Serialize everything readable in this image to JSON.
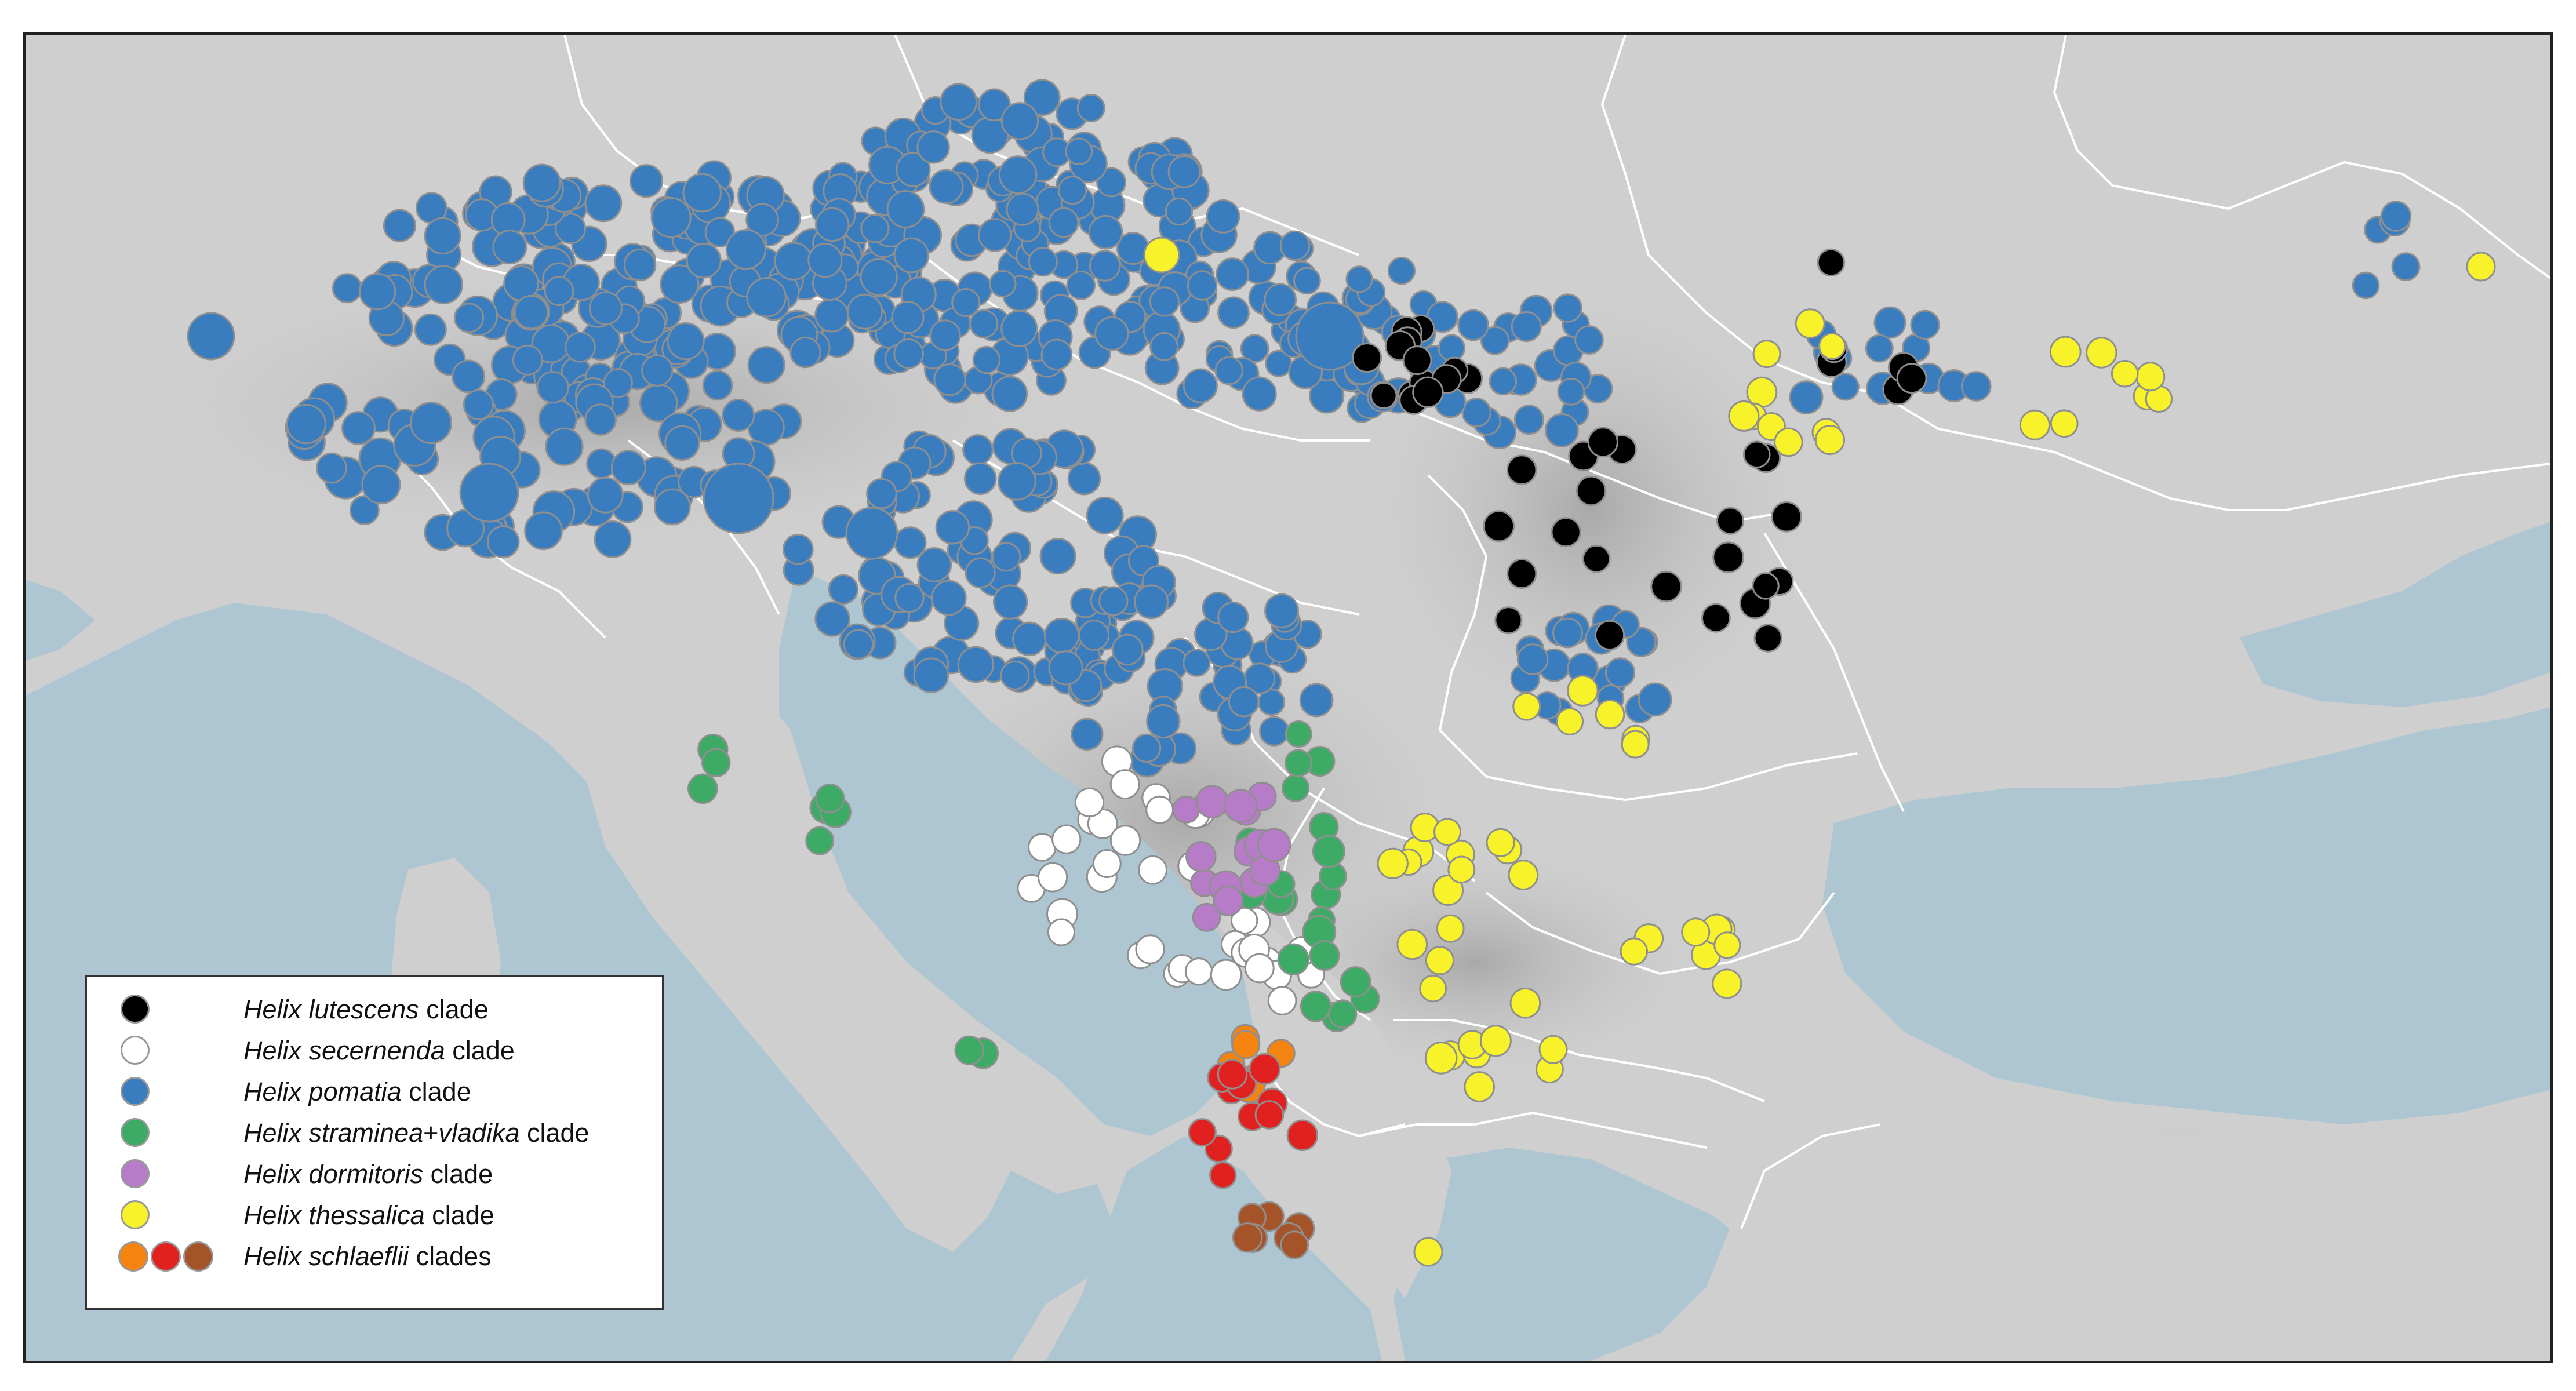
{
  "colors": {
    "land": "#cfcfcf",
    "land_high": "#b4b4b4",
    "sea": "#aec6d1",
    "border": "#ffffff",
    "lutescens": "#000000",
    "secernenda": "#ffffff",
    "pomatia": "#3a7dbf",
    "straminea_vladika": "#3daa66",
    "dormitoris": "#b77cc7",
    "thessalica": "#f7f229",
    "schlaeflii_orange": "#f5830f",
    "schlaeflii_red": "#e0211f",
    "schlaeflii_brown": "#a5542a"
  },
  "legend": {
    "items": [
      {
        "genus": "Helix",
        "species": "lutescens",
        "suffix": " clade",
        "color_key": "lutescens"
      },
      {
        "genus": "Helix",
        "species": "secernenda",
        "suffix": " clade",
        "color_key": "secernenda"
      },
      {
        "genus": "Helix",
        "species": "pomatia",
        "suffix": " clade",
        "color_key": "pomatia"
      },
      {
        "genus": "Helix",
        "species": "straminea",
        "plus": "+",
        "species2": "vladika",
        "suffix": " clade",
        "color_key": "straminea_vladika"
      },
      {
        "genus": "Helix",
        "species": "dormitoris",
        "suffix": " clade",
        "color_key": "dormitoris"
      },
      {
        "genus": "Helix",
        "species": "thessalica",
        "suffix": " clade",
        "color_key": "thessalica"
      },
      {
        "genus": "Helix",
        "species": "schlaeflii",
        "suffix": " clades",
        "color_key": "schlaeflii"
      }
    ]
  }
}
